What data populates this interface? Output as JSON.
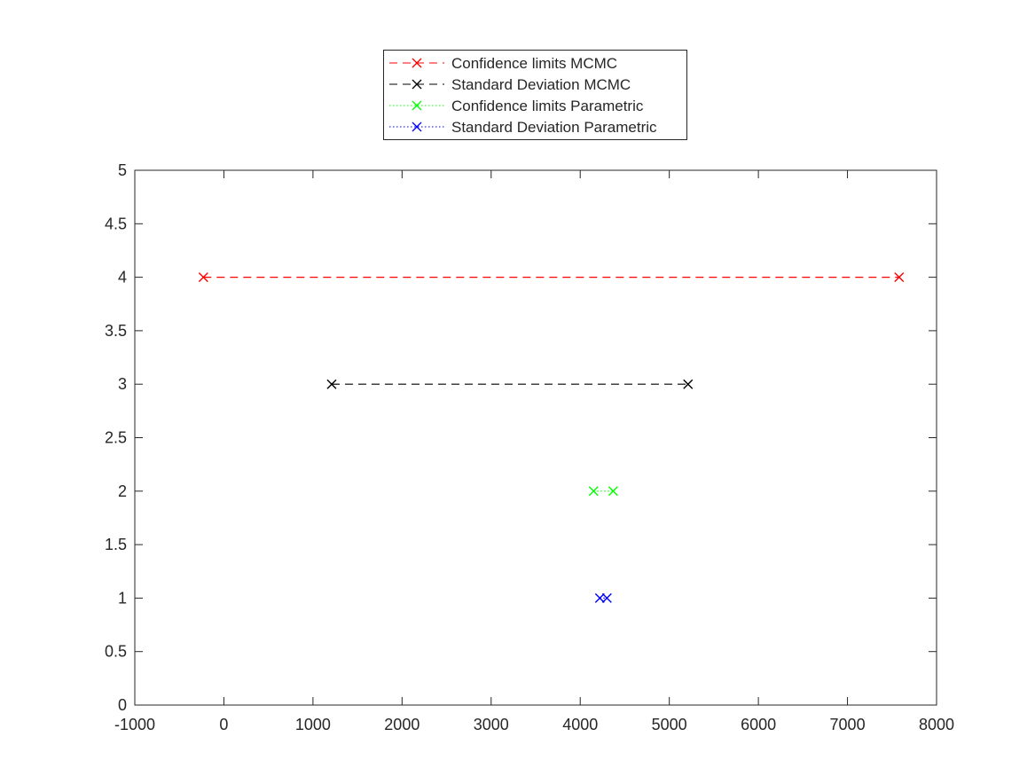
{
  "chart_data": {
    "type": "line",
    "title": "",
    "xlabel": "",
    "ylabel": "",
    "xlim": [
      -1000,
      8000
    ],
    "ylim": [
      0,
      5
    ],
    "xticks": [
      -1000,
      0,
      1000,
      2000,
      3000,
      4000,
      5000,
      6000,
      7000,
      8000
    ],
    "yticks": [
      0,
      0.5,
      1,
      1.5,
      2,
      2.5,
      3,
      3.5,
      4,
      4.5,
      5
    ],
    "xtick_labels": [
      "-1000",
      "0",
      "1000",
      "2000",
      "3000",
      "4000",
      "5000",
      "6000",
      "7000",
      "8000"
    ],
    "ytick_labels": [
      "0",
      "0.5",
      "1",
      "1.5",
      "2",
      "2.5",
      "3",
      "3.5",
      "4",
      "4.5",
      "5"
    ],
    "grid": false,
    "legend_position": "top-center, outside axes",
    "series": [
      {
        "name": "Confidence limits MCMC",
        "color": "#ff0000",
        "line_style": "dashed",
        "marker": "x",
        "x": [
          -230,
          7580
        ],
        "y": [
          4,
          4
        ]
      },
      {
        "name": "Standard Deviation MCMC",
        "color": "#000000",
        "line_style": "dashed",
        "marker": "x",
        "x": [
          1210,
          5210
        ],
        "y": [
          3,
          3
        ]
      },
      {
        "name": "Confidence limits Parametric",
        "color": "#00ff00",
        "line_style": "dotted",
        "marker": "x",
        "x": [
          4150,
          4370
        ],
        "y": [
          2,
          2
        ]
      },
      {
        "name": "Standard Deviation Parametric",
        "color": "#0000ff",
        "line_style": "dotted",
        "marker": "x",
        "x": [
          4220,
          4300
        ],
        "y": [
          1,
          1
        ]
      }
    ]
  }
}
